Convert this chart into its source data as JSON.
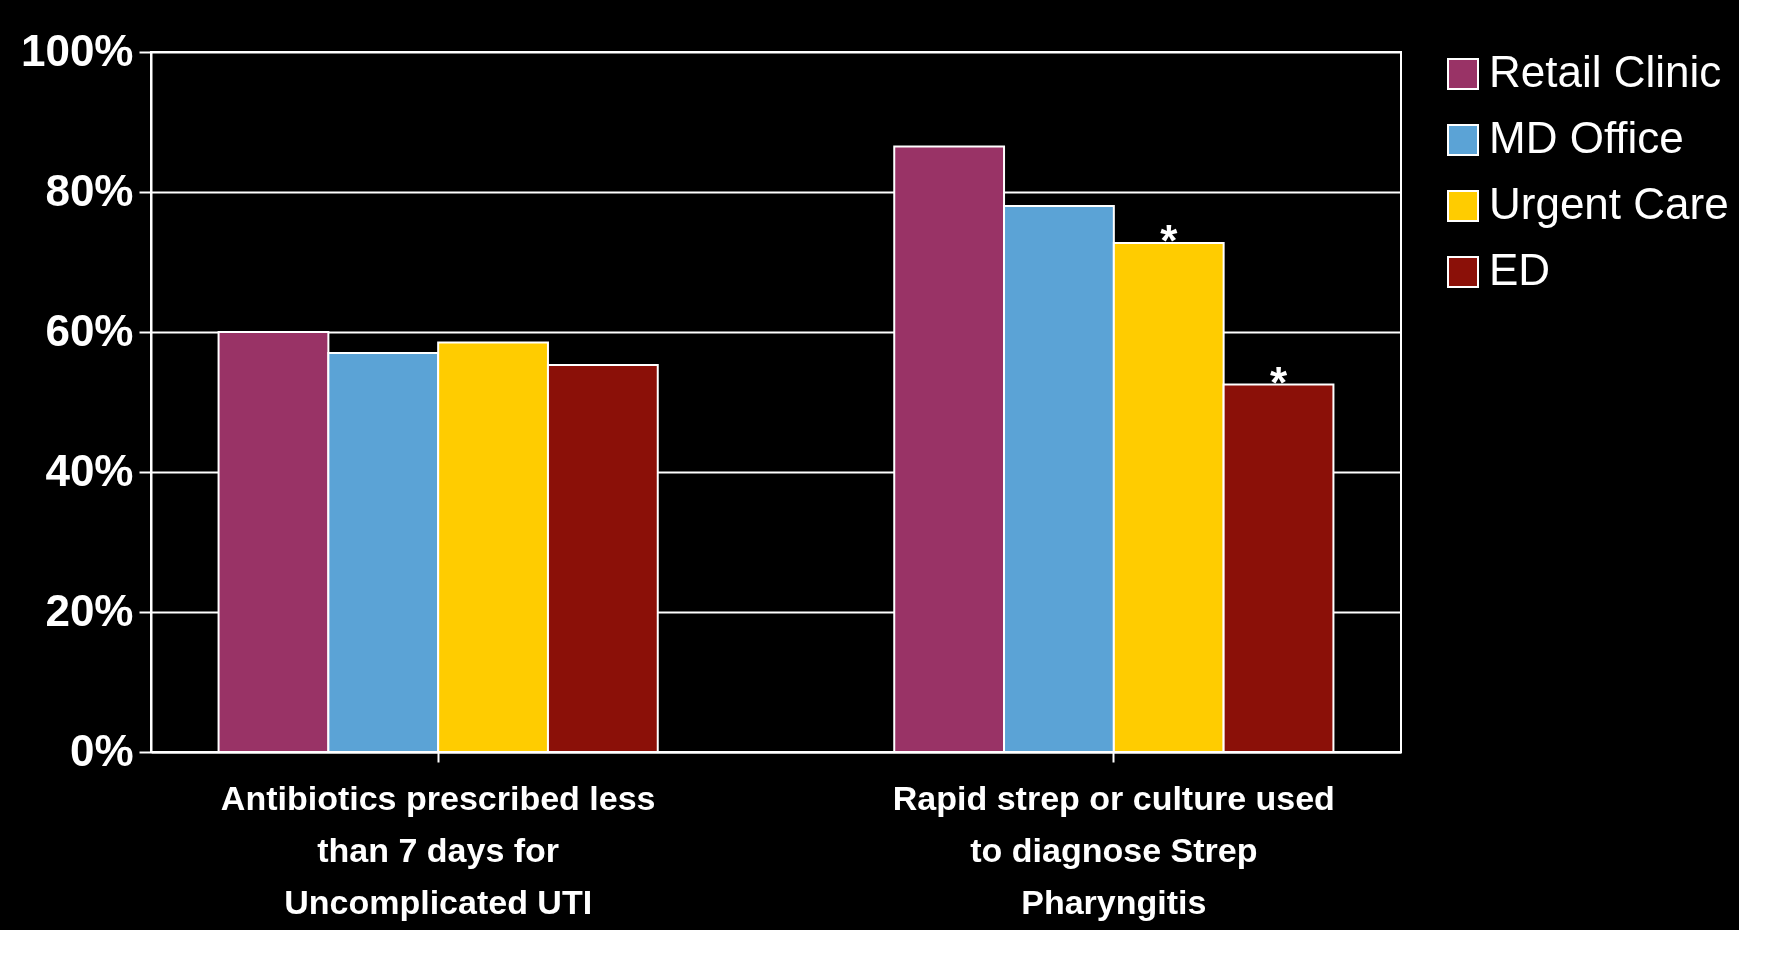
{
  "chart_data": {
    "type": "bar",
    "categories": [
      "Antibiotics prescribed less than 7 days for Uncomplicated UTI",
      "Rapid strep or culture used to diagnose Strep Pharyngitis"
    ],
    "series": [
      {
        "name": "Retail Clinic",
        "color": "#993366",
        "values": [
          60,
          86.5
        ]
      },
      {
        "name": "MD Office",
        "color": "#5ba3d6",
        "values": [
          57,
          78
        ]
      },
      {
        "name": "Urgent Care",
        "color": "#ffcc00",
        "values": [
          58.5,
          72.7
        ]
      },
      {
        "name": "ED",
        "color": "#8b1008",
        "values": [
          55.3,
          52.5
        ]
      }
    ],
    "ylim": [
      0,
      100
    ],
    "yticks": [
      {
        "value": 0,
        "label": "0%"
      },
      {
        "value": 20,
        "label": "20%"
      },
      {
        "value": 40,
        "label": "40%"
      },
      {
        "value": 60,
        "label": "60%"
      },
      {
        "value": 80,
        "label": "80%"
      },
      {
        "value": 100,
        "label": "100%"
      }
    ],
    "grid": "y",
    "legend": "right",
    "annotations": [
      {
        "text": "*",
        "y": 72.7
      },
      {
        "text": "*",
        "y": 52.5
      }
    ]
  }
}
